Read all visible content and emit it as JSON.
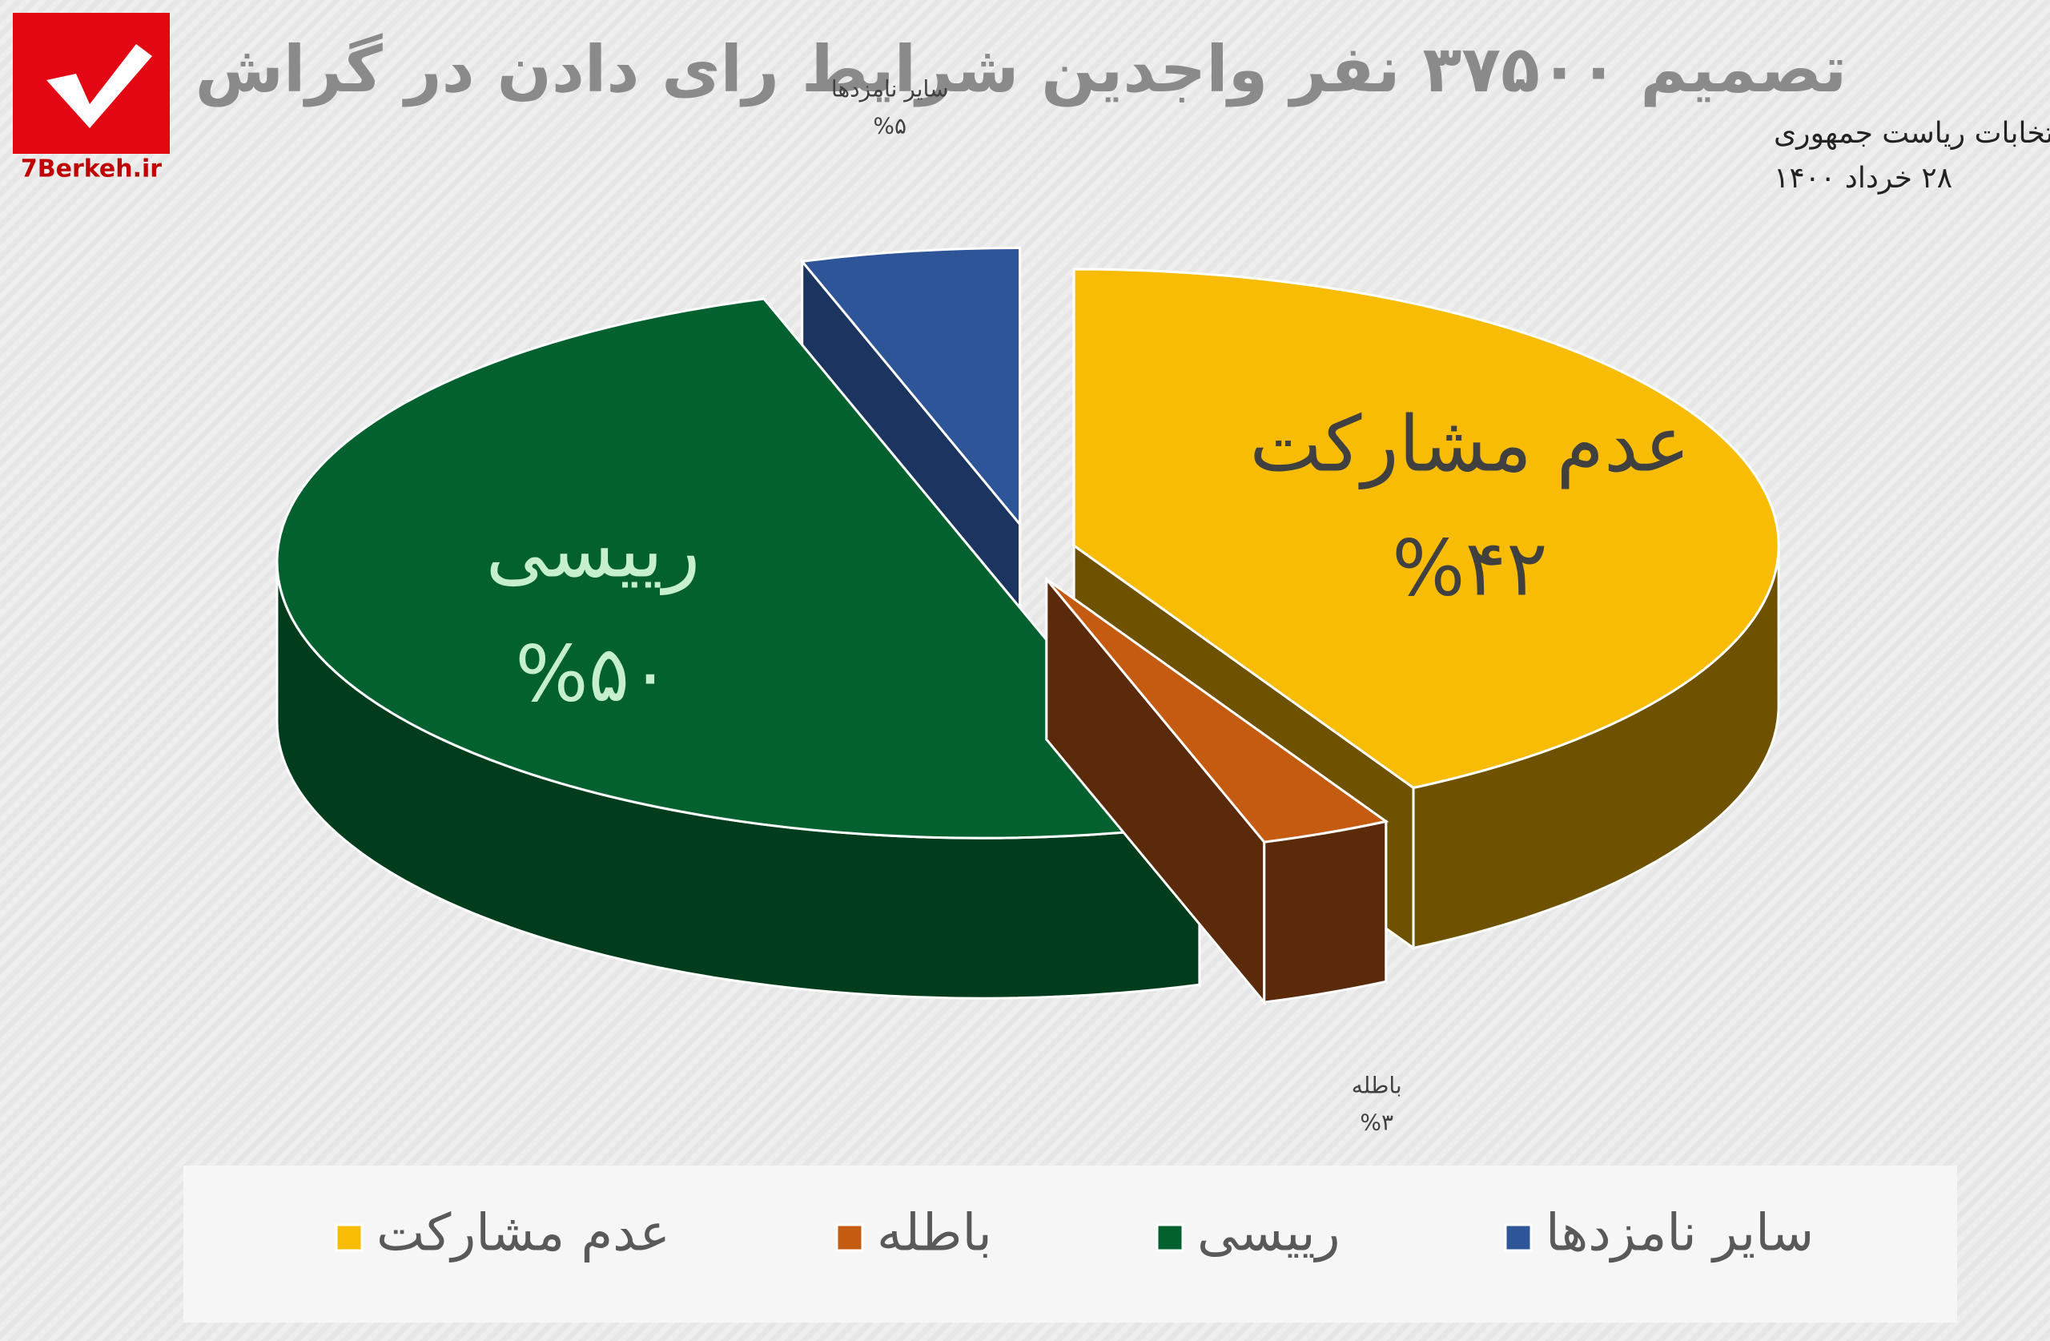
{
  "logo": "7Berkeh.ir",
  "chart_data": {
    "type": "pie3d",
    "title": "تصمیم ۳۷۵۰۰ نفر واجدین شرایط رای دادن در گراش",
    "subtitle": [
      "سیزدهمین دوره انتخابات ریاست جمهوری",
      "۲۸ خرداد ۱۴۰۰"
    ],
    "categories": [
      "عدم مشارکت",
      "باطله",
      "رییسی",
      "سایر نامزدها"
    ],
    "values": [
      42,
      3,
      50,
      5
    ],
    "value_labels": [
      "%۴۲",
      "%۳",
      "%۵۰",
      "%۵"
    ],
    "colors": [
      "#f8bc05",
      "#c55a11",
      "#03612f",
      "#2e5597"
    ],
    "side_colors": [
      "#6e5200",
      "#5a2a0a",
      "#013c1c",
      "#1c3560"
    ],
    "legend": "bottom"
  }
}
